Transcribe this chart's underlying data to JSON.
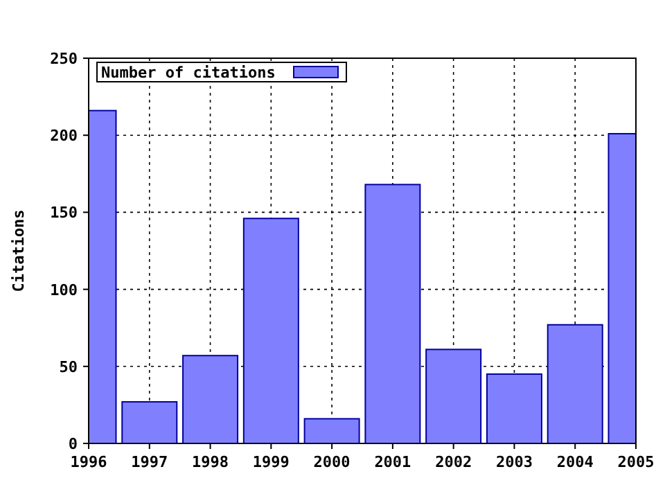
{
  "chart_data": {
    "type": "bar",
    "ylabel": "Citations",
    "x": [
      1996,
      1997,
      1998,
      1999,
      2000,
      2001,
      2002,
      2003,
      2004,
      2005
    ],
    "series": [
      {
        "name": "Number of citations",
        "color": "#8080ff",
        "values": [
          216,
          27,
          57,
          146,
          16,
          168,
          61,
          45,
          77,
          201
        ]
      }
    ],
    "xlim": [
      1996,
      2005
    ],
    "xticks": [
      1996,
      1997,
      1998,
      1999,
      2000,
      2001,
      2002,
      2003,
      2004,
      2005
    ],
    "ylim": [
      0,
      250
    ],
    "yticks": [
      0,
      50,
      100,
      150,
      200,
      250
    ],
    "grid": true,
    "legend": "top left"
  }
}
